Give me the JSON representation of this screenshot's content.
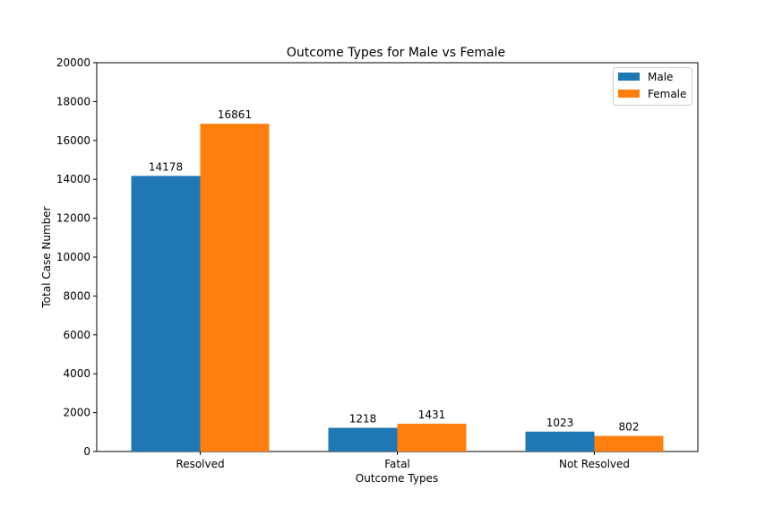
{
  "chart_data": {
    "type": "bar",
    "title": "Outcome Types for Male vs Female",
    "xlabel": "Outcome Types",
    "ylabel": "Total Case Number",
    "categories": [
      "Resolved",
      "Fatal",
      "Not Resolved"
    ],
    "series": [
      {
        "name": "Male",
        "values": [
          14178,
          1218,
          1023
        ],
        "color": "#1f77b4"
      },
      {
        "name": "Female",
        "values": [
          16861,
          1431,
          802
        ],
        "color": "#ff7f0e"
      }
    ],
    "ylim": [
      0,
      20000
    ],
    "yticks": [
      0,
      2000,
      4000,
      6000,
      8000,
      10000,
      12000,
      14000,
      16000,
      18000,
      20000
    ],
    "grid": false,
    "legend_position": "top-right"
  }
}
